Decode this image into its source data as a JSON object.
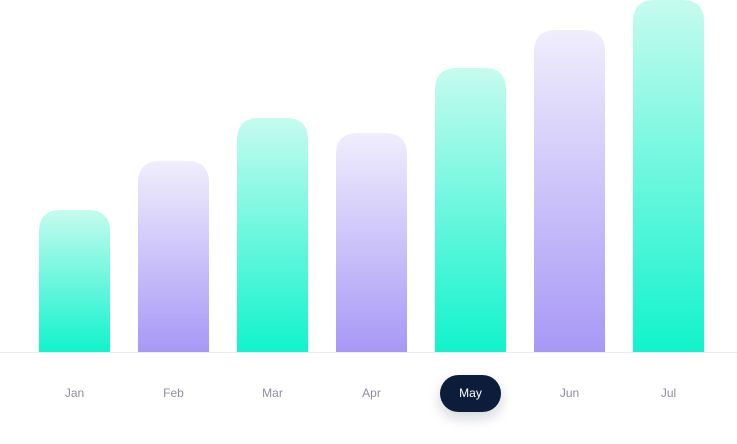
{
  "colors": {
    "teal_top": "#c6fbef",
    "teal_bottom": "#11f3cc",
    "purple_top": "#f0eefc",
    "purple_bottom": "#a898f6",
    "label_text": "#8d8f9e",
    "selected_pill": "#0f1a3a",
    "selected_text": "#ffffff",
    "baseline": "#ececf0"
  },
  "chart_data": {
    "type": "bar",
    "categories": [
      "Jan",
      "Feb",
      "Mar",
      "Apr",
      "May",
      "Jun",
      "Jul"
    ],
    "values": [
      142,
      191,
      234,
      219,
      284,
      322,
      352
    ],
    "bar_styles": [
      "teal",
      "purple",
      "teal",
      "purple",
      "teal",
      "purple",
      "teal"
    ],
    "selected_category": "May",
    "title": "",
    "xlabel": "",
    "ylabel": "",
    "ylim": [
      0,
      352
    ],
    "grid": false,
    "axis_ticks_shown": false
  }
}
